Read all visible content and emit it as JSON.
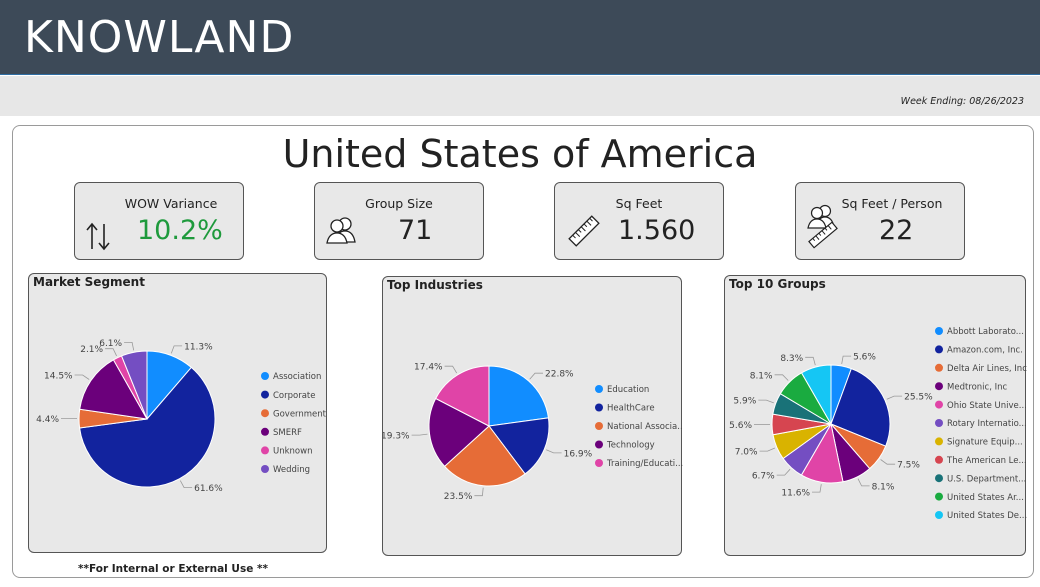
{
  "header": {
    "brand": "KNOWLAND",
    "week_ending": "Week Ending: 08/26/2023"
  },
  "page_title": "United States of America",
  "kpis": [
    {
      "label": "WOW Variance",
      "value": "10.2%",
      "icon": "up-down-arrows-icon",
      "value_color": "#1e9a3c"
    },
    {
      "label": "Group Size",
      "value": "71",
      "icon": "people-icon",
      "value_color": "#222222"
    },
    {
      "label": "Sq Feet",
      "value": "1.560",
      "icon": "ruler-icon",
      "value_color": "#222222"
    },
    {
      "label": "Sq Feet / Person",
      "value": "22",
      "icon": "people-ruler-icon",
      "value_color": "#222222"
    }
  ],
  "chart_data": [
    {
      "type": "pie",
      "title": "Market Segment",
      "categories": [
        "Association",
        "Corporate",
        "Government",
        "SMERF",
        "Unknown",
        "Wedding"
      ],
      "values": [
        11.3,
        61.6,
        4.4,
        14.5,
        2.1,
        6.1
      ],
      "labels": [
        "11.3%",
        "61.6%",
        "4.4%",
        "14.5%",
        "2.1%",
        "6.1%"
      ],
      "colors": [
        "#118dff",
        "#12239e",
        "#e66c37",
        "#6b007b",
        "#e044a7",
        "#744ec2"
      ],
      "legend": "right"
    },
    {
      "type": "pie",
      "title": "Top Industries",
      "categories": [
        "Education",
        "HealthCare",
        "National Associa...",
        "Technology",
        "Training/Educati..."
      ],
      "values": [
        22.8,
        16.9,
        23.5,
        19.3,
        17.4
      ],
      "labels": [
        "22.8%",
        "16.9%",
        "23.5%",
        "19.3%",
        "17.4%"
      ],
      "colors": [
        "#118dff",
        "#12239e",
        "#e66c37",
        "#6b007b",
        "#e044a7"
      ],
      "legend": "right"
    },
    {
      "type": "pie",
      "title": "Top 10 Groups",
      "categories": [
        "Abbott Laborato...",
        "Amazon.com, Inc.",
        "Delta Air Lines, Inc",
        "Medtronic, Inc",
        "Ohio State Unive...",
        "Rotary Internatio...",
        "Signature Equip...",
        "The American Le...",
        "U.S. Department...",
        "United States Ar...",
        "United States De..."
      ],
      "values": [
        5.6,
        25.5,
        7.5,
        8.1,
        11.6,
        6.7,
        7.0,
        5.6,
        5.9,
        8.1,
        8.3
      ],
      "labels": [
        "5.6%",
        "25.5%",
        "7.5%",
        "8.1%",
        "11.6%",
        "6.7%",
        "7.0%",
        "5.6%",
        "5.9%",
        "8.1%",
        "8.3%"
      ],
      "colors": [
        "#118dff",
        "#12239e",
        "#e66c37",
        "#6b007b",
        "#e044a7",
        "#744ec2",
        "#d9b300",
        "#d64550",
        "#197278",
        "#1aab40",
        "#15c6f4"
      ],
      "legend": "right"
    }
  ],
  "footer": {
    "note": "**For Internal or External Use **"
  }
}
